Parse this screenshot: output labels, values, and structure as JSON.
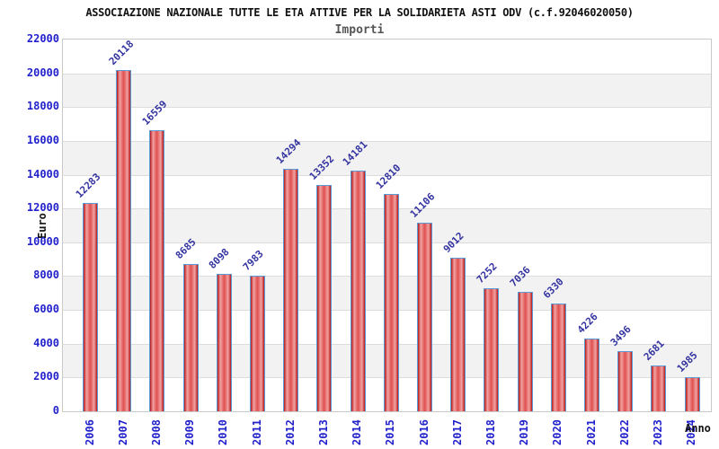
{
  "header": {
    "title": "ASSOCIAZIONE NAZIONALE TUTTE LE ETA ATTIVE PER LA SOLIDARIETA ASTI ODV (c.f.92046020050)",
    "subtitle": "Importi"
  },
  "chart_data": {
    "type": "bar",
    "title": "ASSOCIAZIONE NAZIONALE TUTTE LE ETA ATTIVE PER LA SOLIDARIETA ASTI ODV (c.f.92046020050)",
    "subtitle": "Importi",
    "xlabel": "Anno",
    "ylabel": "Euro",
    "categories": [
      "2006",
      "2007",
      "2008",
      "2009",
      "2010",
      "2011",
      "2012",
      "2013",
      "2014",
      "2015",
      "2016",
      "2017",
      "2018",
      "2019",
      "2020",
      "2021",
      "2022",
      "2023",
      "2024"
    ],
    "values": [
      12283,
      20118,
      16559,
      8685,
      8098,
      7983,
      14294,
      13352,
      14181,
      12810,
      11106,
      9012,
      7252,
      7036,
      6330,
      4226,
      3496,
      2681,
      1985
    ],
    "ylim": [
      0,
      22000
    ],
    "ytick_step": 2000,
    "grid": "horizontal-bands",
    "legend": "none",
    "bar_value_labels": true,
    "colors": {
      "bar_edge": "#b81818",
      "bar_center": "#e05050",
      "bar_highlight": "#f2a2a2",
      "bar_border": "#5b9bd5",
      "axis_tick_text": "#2222cc",
      "value_label_text": "#3232a0",
      "band_fill": "#f2f2f2",
      "gridline": "#dcdcdc",
      "plot_border": "#c9c9c9",
      "title_text": "#111111",
      "subtitle_text": "#555555"
    }
  }
}
